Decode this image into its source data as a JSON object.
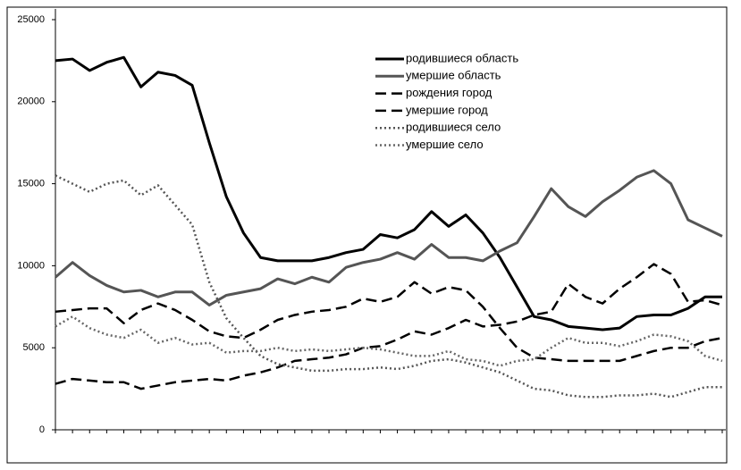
{
  "chart_data": {
    "type": "line",
    "categories": [
      null,
      null,
      null,
      null,
      null,
      null,
      null,
      null,
      null,
      null,
      null,
      null,
      null,
      null,
      null,
      null,
      null,
      null,
      null,
      null,
      null,
      null,
      null,
      null,
      null,
      null,
      null,
      null,
      null,
      null,
      null,
      null,
      null,
      null,
      null,
      null,
      null,
      null,
      null,
      null
    ],
    "ylim": [
      0,
      25000
    ],
    "yticks": [
      0,
      5000,
      10000,
      15000,
      20000,
      25000
    ],
    "grid": false,
    "legend": "top-right",
    "series": [
      {
        "name": "родившиеся область",
        "color": "#000000",
        "style": "solid",
        "width": 3,
        "values": [
          22500,
          22600,
          21900,
          22400,
          22700,
          20900,
          21800,
          21600,
          21000,
          17500,
          14200,
          12000,
          10500,
          10300,
          10300,
          10300,
          10500,
          10800,
          11000,
          11900,
          11700,
          12200,
          13300,
          12400,
          13100,
          12000,
          10500,
          8700,
          6900,
          6700,
          6300,
          6200,
          6100,
          6200,
          6900,
          7000,
          7000,
          7400,
          8100,
          8100
        ]
      },
      {
        "name": "умершие  область",
        "color": "#555555",
        "style": "solid",
        "width": 3,
        "values": [
          9300,
          10200,
          9400,
          8800,
          8400,
          8500,
          8100,
          8400,
          8400,
          7600,
          8200,
          8400,
          8600,
          9200,
          8900,
          9300,
          9000,
          9900,
          10200,
          10400,
          10800,
          10400,
          11300,
          10500,
          10500,
          10300,
          10900,
          11400,
          13000,
          14700,
          13600,
          13000,
          13900,
          14600,
          15400,
          15800,
          15000,
          12800,
          12300,
          11800
        ]
      },
      {
        "name": "рождения город",
        "color": "#000000",
        "style": "dashed",
        "width": 2.5,
        "values": [
          7200,
          7300,
          7400,
          7400,
          6500,
          7300,
          7700,
          7300,
          6700,
          6000,
          5700,
          5600,
          6100,
          6700,
          7000,
          7200,
          7300,
          7500,
          8000,
          7800,
          8100,
          9000,
          8300,
          8700,
          8500,
          7500,
          6200,
          5000,
          4400,
          4300,
          4200,
          4200,
          4200,
          4200,
          4500,
          4800,
          5000,
          5000,
          5400,
          5600
        ]
      },
      {
        "name": "умершие город",
        "color": "#000000",
        "style": "dashed",
        "width": 2.5,
        "values": [
          2800,
          3100,
          3000,
          2900,
          2900,
          2500,
          2700,
          2900,
          3000,
          3100,
          3000,
          3300,
          3500,
          3800,
          4200,
          4300,
          4400,
          4600,
          5000,
          5100,
          5500,
          6000,
          5800,
          6200,
          6700,
          6300,
          6400,
          6600,
          7000,
          7200,
          8900,
          8100,
          7700,
          8600,
          9300,
          10100,
          9500,
          7800,
          7900,
          7600
        ]
      },
      {
        "name": "родившиеся село",
        "color": "#555555",
        "style": "dotted",
        "width": 2.5,
        "values": [
          15500,
          15000,
          14500,
          15000,
          15200,
          14300,
          14900,
          13700,
          12500,
          9000,
          6800,
          5600,
          4500,
          4000,
          3800,
          3600,
          3600,
          3700,
          3700,
          3800,
          3700,
          3900,
          4200,
          4300,
          4100,
          3800,
          3500,
          3000,
          2500,
          2400,
          2100,
          2000,
          2000,
          2100,
          2100,
          2200,
          2000,
          2300,
          2600,
          2600
        ]
      },
      {
        "name": "умершие село",
        "color": "#666666",
        "style": "dotted",
        "width": 2.5,
        "values": [
          6300,
          6900,
          6200,
          5800,
          5600,
          6100,
          5300,
          5600,
          5200,
          5300,
          4700,
          4800,
          4800,
          5000,
          4800,
          4900,
          4800,
          4900,
          5000,
          4900,
          4700,
          4500,
          4500,
          4800,
          4300,
          4200,
          3900,
          4200,
          4300,
          5000,
          5600,
          5300,
          5300,
          5100,
          5400,
          5800,
          5700,
          5400,
          4500,
          4200
        ]
      }
    ]
  }
}
